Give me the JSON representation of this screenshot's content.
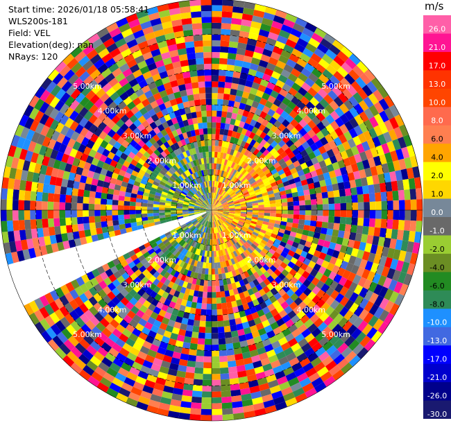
{
  "info": {
    "start_time": "Start time: 2026/01/18 05:58:41",
    "instrument": "WLS200s-181",
    "field": "Field: VEL",
    "elevation": "Elevation(deg): nan",
    "nrays": "NRays: 120"
  },
  "colorbar": {
    "unit": "m/s",
    "segments": [
      {
        "label": "26.0",
        "color": "#ff5fa8"
      },
      {
        "label": "21.0",
        "color": "#ff1493"
      },
      {
        "label": "17.0",
        "color": "#ff0000"
      },
      {
        "label": "13.0",
        "color": "#ff3300"
      },
      {
        "label": "10.0",
        "color": "#ff4500"
      },
      {
        "label": "8.0",
        "color": "#ff6a4d"
      },
      {
        "label": "6.0",
        "color": "#ff7f50"
      },
      {
        "label": "4.0",
        "color": "#ffa500"
      },
      {
        "label": "2.0",
        "color": "#ffff00"
      },
      {
        "label": "1.0",
        "color": "#ffd700"
      },
      {
        "label": "0.0",
        "color": "#778899"
      },
      {
        "label": "-1.0",
        "color": "#696969"
      },
      {
        "label": "-2.0",
        "color": "#9acd32"
      },
      {
        "label": "-4.0",
        "color": "#6b8e23"
      },
      {
        "label": "-6.0",
        "color": "#228b22"
      },
      {
        "label": "-8.0",
        "color": "#2e8b57"
      },
      {
        "label": "-10.0",
        "color": "#1e90ff"
      },
      {
        "label": "-13.0",
        "color": "#4169e1"
      },
      {
        "label": "-17.0",
        "color": "#0000ff"
      },
      {
        "label": "-21.0",
        "color": "#0000cd"
      },
      {
        "label": "-26.0",
        "color": "#00008b"
      },
      {
        "label": "-30.0",
        "color": "#191970"
      }
    ]
  },
  "chart_data": {
    "type": "heatmap",
    "projection": "polar-ppi",
    "field": "VEL",
    "rays": 120,
    "gates": 36,
    "missing_azimuth_sector_deg": [
      242,
      256
    ],
    "range_rings": [
      {
        "label": "1.00km",
        "range_km": 1
      },
      {
        "label": "2.00km",
        "range_km": 2
      },
      {
        "label": "3.00km",
        "range_km": 3
      },
      {
        "label": "4.00km",
        "range_km": 4
      },
      {
        "label": "5.00km",
        "range_km": 5
      }
    ],
    "max_range_km": 6.0,
    "label_azimuths_deg": [
      45,
      135,
      225,
      315
    ]
  }
}
